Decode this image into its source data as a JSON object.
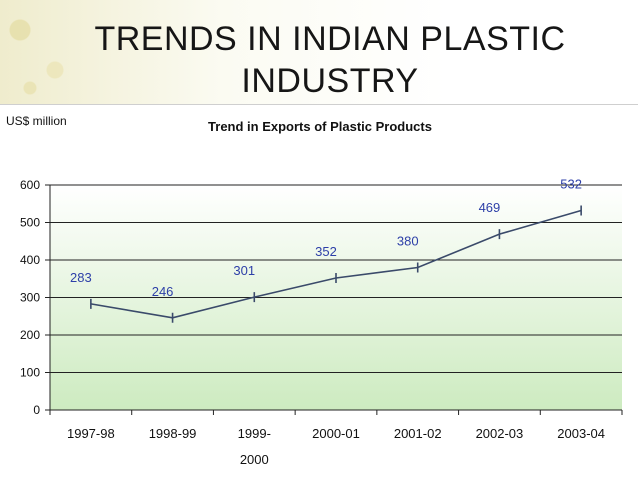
{
  "header": {
    "title_line1": "TRENDS IN INDIAN PLASTIC",
    "title_line2": "INDUSTRY"
  },
  "chart_data": {
    "type": "line",
    "title": "Trend in Exports of Plastic Products",
    "ylabel": "US$ million",
    "xlabel": "",
    "categories": [
      "1997-98",
      "1998-99",
      "1999-2000",
      "2000-01",
      "2001-02",
      "2002-03",
      "2003-04"
    ],
    "category_labels": [
      [
        "1997-98"
      ],
      [
        "1998-99"
      ],
      [
        "1999-",
        "2000"
      ],
      [
        "2000-01"
      ],
      [
        "2001-02"
      ],
      [
        "2002-03"
      ],
      [
        "2003-04"
      ]
    ],
    "series": [
      {
        "values": [
          283,
          246,
          301,
          352,
          380,
          469,
          532
        ]
      }
    ],
    "ylim": [
      0,
      600
    ],
    "yticks": [
      "0",
      "100",
      "200",
      "300",
      "400",
      "500",
      "600"
    ],
    "grid": true,
    "colors": {
      "line": "#3a4a6a",
      "data_label": "#2d3fa8",
      "plot_band_top": "#ffffff",
      "plot_band_bottom": "#cdebc0",
      "gridline": "#222222"
    }
  }
}
